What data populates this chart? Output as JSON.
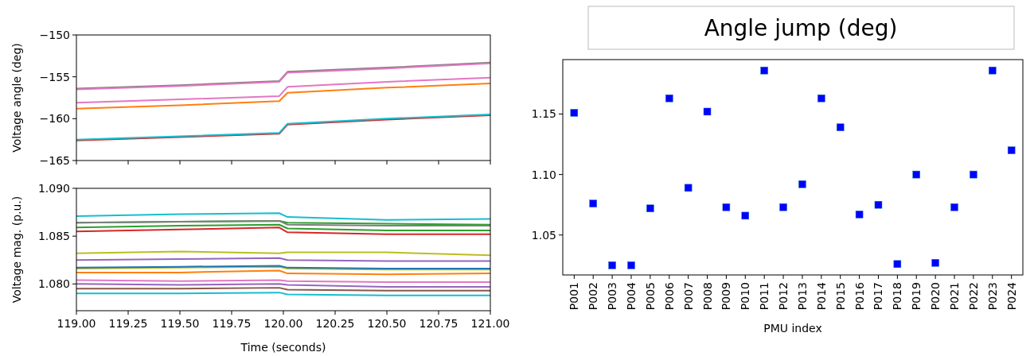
{
  "chart_data": [
    {
      "type": "line",
      "ylabel": "Voltage angle (deg)",
      "x": [
        119,
        119.5,
        119.98,
        120.02,
        120.5,
        121
      ],
      "xlim": [
        119,
        121
      ],
      "xticks": [
        {
          "value": 119,
          "label": null
        },
        {
          "value": 119.25,
          "label": null
        },
        {
          "value": 119.5,
          "label": null
        },
        {
          "value": 119.75,
          "label": null
        },
        {
          "value": 120,
          "label": null
        },
        {
          "value": 120.25,
          "label": null
        },
        {
          "value": 120.5,
          "label": null
        },
        {
          "value": 120.75,
          "label": null
        },
        {
          "value": 121,
          "label": null
        }
      ],
      "ylim": [
        -165,
        -150
      ],
      "yticks": [
        {
          "value": -165,
          "label": "−165"
        },
        {
          "value": -160,
          "label": "−160"
        },
        {
          "value": -155,
          "label": "−155"
        },
        {
          "value": -150,
          "label": "−150"
        }
      ],
      "tick_labels": "y",
      "grid": false,
      "series": [
        {
          "color": "#7f7f7f",
          "values": [
            -156.4,
            -156.0,
            -155.5,
            -154.4,
            -153.9,
            -153.3
          ]
        },
        {
          "color": "#e377c2",
          "values": [
            -156.5,
            -156.1,
            -155.6,
            -154.5,
            -154.0,
            -153.4
          ]
        },
        {
          "color": "#e377c2",
          "values": [
            -158.1,
            -157.7,
            -157.3,
            -156.2,
            -155.6,
            -155.1
          ]
        },
        {
          "color": "#ff7f0e",
          "values": [
            -158.8,
            -158.4,
            -157.9,
            -156.9,
            -156.3,
            -155.8
          ]
        },
        {
          "color": "#d62728",
          "values": [
            -162.6,
            -162.2,
            -161.8,
            -160.7,
            -160.1,
            -159.6
          ]
        },
        {
          "color": "#17becf",
          "values": [
            -162.5,
            -162.1,
            -161.7,
            -160.6,
            -160.0,
            -159.5
          ]
        }
      ]
    },
    {
      "type": "line",
      "xlabel": "Time (seconds)",
      "ylabel": "Voltage mag. (p.u.)",
      "x": [
        119,
        119.5,
        119.98,
        120.02,
        120.5,
        121
      ],
      "xlim": [
        119,
        121
      ],
      "xticks": [
        {
          "value": 119,
          "label": "119.00"
        },
        {
          "value": 119.25,
          "label": "119.25"
        },
        {
          "value": 119.5,
          "label": "119.50"
        },
        {
          "value": 119.75,
          "label": "119.75"
        },
        {
          "value": 120,
          "label": "120.00"
        },
        {
          "value": 120.25,
          "label": "120.25"
        },
        {
          "value": 120.5,
          "label": "120.50"
        },
        {
          "value": 120.75,
          "label": "120.75"
        },
        {
          "value": 121,
          "label": "121.00"
        }
      ],
      "ylim": [
        1.0772,
        1.09
      ],
      "yticks": [
        {
          "value": 1.08,
          "label": "1.080"
        },
        {
          "value": 1.085,
          "label": "1.085"
        },
        {
          "value": 1.09,
          "label": "1.090"
        }
      ],
      "grid": false,
      "series": [
        {
          "color": "#17becf",
          "values": [
            1.0871,
            1.0873,
            1.0874,
            1.087,
            1.0867,
            1.0868
          ]
        },
        {
          "color": "#2ca02c",
          "values": [
            1.0864,
            1.0865,
            1.0866,
            1.0864,
            1.0863,
            1.0862
          ]
        },
        {
          "color": "#7f7f7f",
          "values": [
            1.0864,
            1.0865,
            1.0866,
            1.0862,
            1.0861,
            1.0861
          ]
        },
        {
          "color": "#2ca02c",
          "values": [
            1.0859,
            1.0861,
            1.0862,
            1.0858,
            1.0856,
            1.0856
          ]
        },
        {
          "color": "#d62728",
          "values": [
            1.0855,
            1.0857,
            1.0859,
            1.0854,
            1.0852,
            1.0852
          ]
        },
        {
          "color": "#bcbd22",
          "values": [
            1.0832,
            1.0834,
            1.0832,
            1.0833,
            1.0833,
            1.083
          ]
        },
        {
          "color": "#9467bd",
          "values": [
            1.0825,
            1.0826,
            1.0827,
            1.0825,
            1.0824,
            1.0824
          ]
        },
        {
          "color": "#bcbd22",
          "values": [
            1.0816,
            1.0817,
            1.0818,
            1.0816,
            1.0815,
            1.0815
          ]
        },
        {
          "color": "#1f77b4",
          "values": [
            1.0817,
            1.0818,
            1.0819,
            1.0817,
            1.0816,
            1.0816
          ]
        },
        {
          "color": "#ff7f0e",
          "values": [
            1.0812,
            1.0812,
            1.0814,
            1.0811,
            1.081,
            1.0811
          ]
        },
        {
          "color": "#e377c2",
          "values": [
            1.0804,
            1.0803,
            1.0804,
            1.0803,
            1.0802,
            1.0802
          ]
        },
        {
          "color": "#9467bd",
          "values": [
            1.08,
            1.0799,
            1.08,
            1.0799,
            1.0797,
            1.0797
          ]
        },
        {
          "color": "#8c564b",
          "values": [
            1.0795,
            1.0795,
            1.0796,
            1.0794,
            1.0793,
            1.0793
          ]
        },
        {
          "color": "#17becf",
          "values": [
            1.079,
            1.079,
            1.0791,
            1.0789,
            1.0788,
            1.0788
          ]
        }
      ]
    },
    {
      "type": "scatter",
      "title": "Angle jump (deg)",
      "xlabel": "PMU index",
      "categories": [
        "P001",
        "P002",
        "P003",
        "P004",
        "P005",
        "P006",
        "P007",
        "P008",
        "P009",
        "P010",
        "P011",
        "P012",
        "P013",
        "P014",
        "P015",
        "P016",
        "P017",
        "P018",
        "P019",
        "P020",
        "P021",
        "P022",
        "P023",
        "P024"
      ],
      "ylim": [
        1.017,
        1.195
      ],
      "yticks": [
        {
          "value": 1.05,
          "label": "1.05"
        },
        {
          "value": 1.1,
          "label": "1.10"
        },
        {
          "value": 1.15,
          "label": "1.15"
        }
      ],
      "grid": false,
      "marker": "square",
      "series": [
        {
          "color": "#0000ff",
          "values": [
            1.151,
            1.076,
            1.025,
            1.025,
            1.072,
            1.163,
            1.089,
            1.152,
            1.073,
            1.066,
            1.186,
            1.073,
            1.092,
            1.163,
            1.139,
            1.067,
            1.075,
            1.026,
            1.1,
            1.027,
            1.073,
            1.1,
            1.186,
            1.12
          ]
        }
      ]
    }
  ]
}
